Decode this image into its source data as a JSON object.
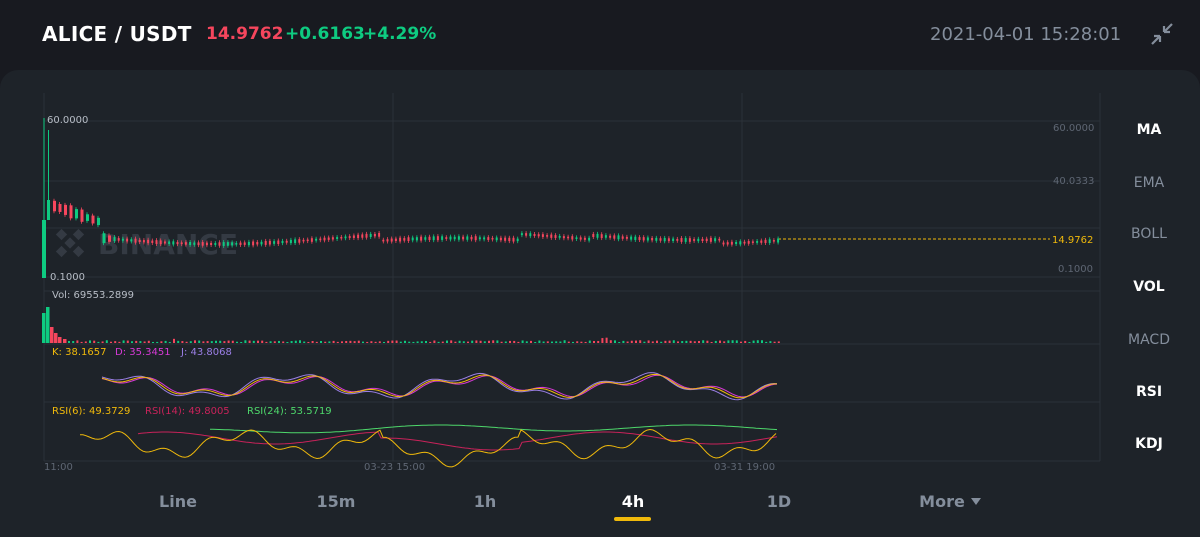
{
  "header": {
    "pair": "ALICE / USDT",
    "price": "14.9762",
    "change": "+0.6163",
    "change_pct": "+4.29%",
    "datetime": "2021-04-01 15:28:01",
    "collapse_icon": "collapse-arrows-icon"
  },
  "chart": {
    "watermark": "BINANCE",
    "price_high_label": "60.0000",
    "price_low_label": "0.1000",
    "axis_labels": [
      "60.0000",
      "40.0333",
      "14.9762",
      "0.1000"
    ],
    "current_price_tag": "14.9762",
    "vol_label": "Vol: 69553.2899",
    "kdj": {
      "k": "K: 38.1657",
      "d": "D: 35.3451",
      "j": "J: 43.8068"
    },
    "rsi": {
      "rsi6": "RSI(6): 49.3729",
      "rsi14": "RSI(14): 49.8005",
      "rsi24": "RSI(24): 53.5719"
    },
    "time_labels": [
      "11:00",
      "03-23 15:00",
      "03-31 19:00"
    ],
    "colors": {
      "up": "#0ecb81",
      "down": "#f6465d",
      "accent": "#f0b90b",
      "muted": "#848e9c"
    }
  },
  "side_menu": [
    {
      "label": "MA",
      "active": true
    },
    {
      "label": "EMA",
      "active": false
    },
    {
      "label": "BOLL",
      "active": false
    },
    {
      "label": "VOL",
      "active": true
    },
    {
      "label": "MACD",
      "active": false
    },
    {
      "label": "RSI",
      "active": true
    },
    {
      "label": "KDJ",
      "active": true
    }
  ],
  "tabs": [
    {
      "label": "Line",
      "active": false
    },
    {
      "label": "15m",
      "active": false
    },
    {
      "label": "1h",
      "active": false
    },
    {
      "label": "4h",
      "active": true
    },
    {
      "label": "1D",
      "active": false
    },
    {
      "label": "More",
      "active": false
    }
  ]
}
